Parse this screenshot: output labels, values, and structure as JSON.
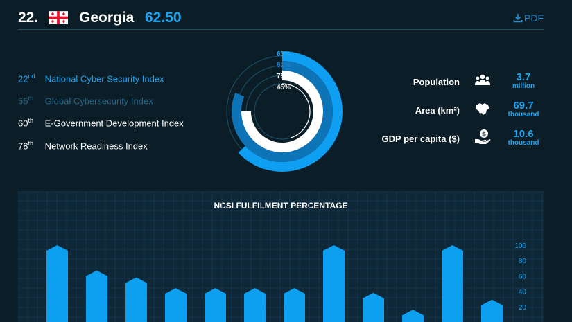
{
  "header": {
    "rank": "22.",
    "country": "Georgia",
    "score": "62.50",
    "pdf_label": "PDF"
  },
  "indices": [
    {
      "rank": "22",
      "suffix": "nd",
      "label": "National Cyber Security Index",
      "color": "#1fa3ef"
    },
    {
      "rank": "55",
      "suffix": "th",
      "label": "Global Cybersecurity Index",
      "color": "#27668a"
    },
    {
      "rank": "60",
      "suffix": "th",
      "label": "E-Government Development Index",
      "color": "#ffffff"
    },
    {
      "rank": "78",
      "suffix": "th",
      "label": "Network Readiness Index",
      "color": "#ffffff"
    }
  ],
  "rings": [
    {
      "label": "63%",
      "value": 0.63,
      "color": "#0f9ff2"
    },
    {
      "label": "81%",
      "value": 0.81,
      "color": "#0d74b8"
    },
    {
      "label": "75%",
      "value": 0.75,
      "color": "#ffffff"
    },
    {
      "label": "45%",
      "value": 0.45,
      "color": "#0b1d26"
    }
  ],
  "stats": [
    {
      "label": "Population",
      "value": "3.7",
      "unit": "million",
      "icon": "people-icon"
    },
    {
      "label": "Area (km²)",
      "value": "69.7",
      "unit": "thousand",
      "icon": "map-icon"
    },
    {
      "label": "GDP per capita ($)",
      "value": "10.6",
      "unit": "thousand",
      "icon": "money-hand-icon"
    }
  ],
  "chart_data": {
    "type": "bar",
    "title": "NCSI FULFILMENT PERCENTAGE",
    "values": [
      100,
      67,
      58,
      44,
      44,
      44,
      44,
      100,
      38,
      16,
      100,
      29
    ],
    "ylim": [
      0,
      100
    ],
    "yticks": [
      20,
      40,
      60,
      80,
      100
    ],
    "color": "#0ea0f0"
  }
}
